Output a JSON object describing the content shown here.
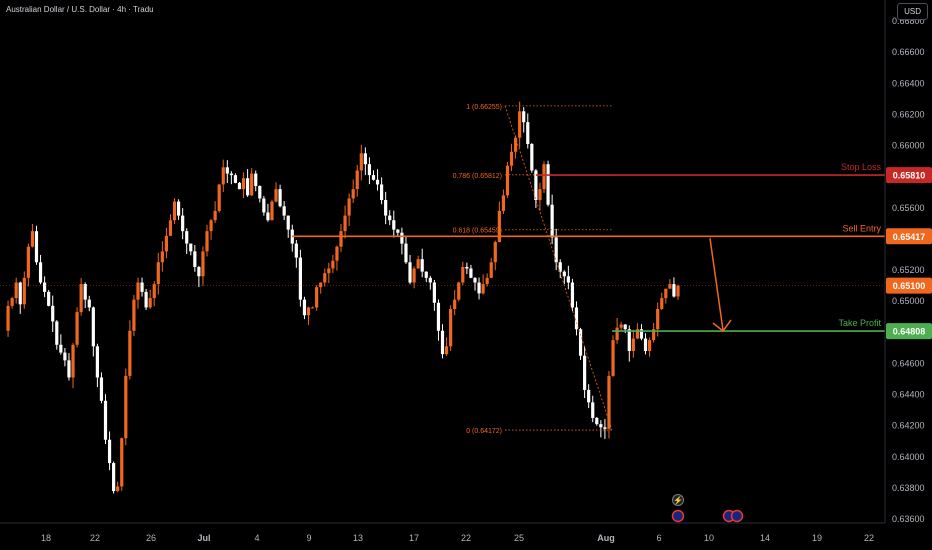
{
  "header": {
    "title": "Australian Dollar / U.S. Dollar · 4h · Tradu",
    "currency_button": "USD"
  },
  "colors": {
    "background": "#000000",
    "bull": "#f0671f",
    "bear": "#ffffff",
    "stop_loss": "#c62828",
    "sell_entry": "#f0671f",
    "take_profit": "#4caf50",
    "fib": "#f0671f",
    "current": "#f0671f"
  },
  "chart_data": {
    "type": "candlestick",
    "y_axis": {
      "min": 0.63575,
      "max": 0.66935,
      "ticks": [
        "0.66800",
        "0.66600",
        "0.66400",
        "0.66200",
        "0.66000",
        "0.65800",
        "0.65600",
        "0.65400",
        "0.65200",
        "0.65000",
        "0.64800",
        "0.64600",
        "0.64400",
        "0.64200",
        "0.64000",
        "0.63800",
        "0.63600"
      ]
    },
    "x_axis": {
      "ticks": [
        "18",
        "22",
        "26",
        "Jul",
        "4",
        "9",
        "13",
        "17",
        "22",
        "25",
        "Aug",
        "6",
        "10",
        "14",
        "19",
        "22"
      ]
    },
    "levels": [
      {
        "name": "Stop Loss",
        "value": "0.65810",
        "price": 0.6581,
        "color": "#c62828"
      },
      {
        "name": "Sell Entry",
        "value": "0.65417",
        "price": 0.65417,
        "color": "#f0671f"
      },
      {
        "name": "Take Profit",
        "value": "0.64808",
        "price": 0.64808,
        "color": "#4caf50"
      }
    ],
    "current_price": {
      "value": "0.65100",
      "price": 0.651
    },
    "fib_levels": [
      {
        "label": "1 (0.66255)",
        "price": 0.66255
      },
      {
        "label": "0.786 (0.65812)",
        "price": 0.65812
      },
      {
        "label": "0.618 (0.65459)",
        "price": 0.65459
      },
      {
        "label": "0 (0.64172)",
        "price": 0.64172
      }
    ],
    "price_path": [
      [
        0.6481,
        0.6497,
        0.6502,
        0.6512,
        0.6498,
        0.6515,
        0.6535,
        0.6545,
        0.6525,
        0.6512,
        0.6506,
        0.6497,
        0.6487,
        0.6472,
        0.6467,
        0.6462,
        0.6451,
        0.6472,
        0.6493,
        0.6511,
        0.6501,
        0.6496,
        0.6471,
        0.6451,
        0.6436,
        0.6411,
        0.6396,
        0.6378,
        0.6381,
        0.6412,
        0.6452,
        0.6481,
        0.6501,
        0.6512,
        0.6506,
        0.6496,
        0.6502,
        0.6511,
        0.6525,
        0.6532,
        0.6542,
        0.6552,
        0.6564,
        0.6555,
        0.6545,
        0.6537,
        0.6532,
        0.6522,
        0.6516,
        0.6532,
        0.6545,
        0.6552,
        0.6558,
        0.6575,
        0.6586,
        0.6582,
        0.6581,
        0.6576,
        0.6572,
        0.6579,
        0.6568,
        0.6582,
        0.6574,
        0.6566,
        0.6557,
        0.6552,
        0.6564,
        0.6572,
        0.6561,
        0.6555,
        0.6546,
        0.6537,
        0.6528,
        0.6501,
        0.6491,
        0.6496,
        0.6496,
        0.6509,
        0.6512,
        0.6518,
        0.6521,
        0.6526,
        0.6535,
        0.6545,
        0.6555,
        0.6566,
        0.6572,
        0.6584,
        0.6595,
        0.6588,
        0.6581,
        0.6578,
        0.6575,
        0.6565,
        0.6555,
        0.6552,
        0.6546,
        0.6544,
        0.6537,
        0.6525,
        0.6512,
        0.6521,
        0.6527,
        0.6519,
        0.6515,
        0.6512,
        0.6499,
        0.6481,
        0.6466,
        0.6471,
        0.6495,
        0.6501,
        0.6512,
        0.6522,
        0.6521,
        0.6515,
        0.6512,
        0.6505,
        0.6511,
        0.6515,
        0.6525,
        0.6538,
        0.6558,
        0.6568,
        0.6587,
        0.6596,
        0.6605,
        0.6622,
        0.6615,
        0.6601,
        0.6584,
        0.6565,
        0.6572,
        0.6588,
        0.6562,
        0.6541,
        0.6525,
        0.6519,
        0.6516,
        0.6512,
        0.6496,
        0.6482,
        0.6465,
        0.6443,
        0.6435,
        0.6425,
        0.6421,
        0.6419,
        0.6418,
        0.6452,
        0.6475,
        0.6483,
        0.6485,
        0.6482,
        0.6468,
        0.6476,
        0.6482,
        0.6476,
        0.6468,
        0.6475,
        0.6482,
        0.6495,
        0.6502,
        0.6508,
        0.6511,
        0.6503,
        0.651
      ]
    ]
  },
  "events": {
    "lightning_icon": "lightning-icon",
    "flag_icons": [
      "us-flag-icon",
      "au-us-flag-icon"
    ]
  }
}
